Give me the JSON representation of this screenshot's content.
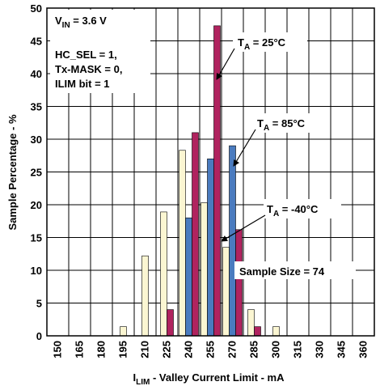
{
  "chart_data": {
    "type": "bar",
    "xlabel": {
      "main": "I",
      "sub": "LIM",
      "rest": " - Valley Current Limit - mA"
    },
    "ylabel": "Sample Percentage - %",
    "ylim": [
      0,
      50
    ],
    "yticks": [
      "0",
      "5",
      "10",
      "15",
      "20",
      "25",
      "30",
      "35",
      "40",
      "45",
      "50"
    ],
    "categories": [
      "150",
      "165",
      "180",
      "195",
      "210",
      "225",
      "240",
      "255",
      "270",
      "285",
      "300",
      "315",
      "330",
      "345",
      "360"
    ],
    "grid": true,
    "series": [
      {
        "name": "T_A = 25°C",
        "color": "#b0235f",
        "bars": [
          {
            "x": 225,
            "value": 4.0
          },
          {
            "x": 240,
            "value": 31.0
          },
          {
            "x": 255,
            "value": 47.3
          },
          {
            "x": 270,
            "value": 16.2
          },
          {
            "x": 285,
            "value": 1.4
          }
        ]
      },
      {
        "name": "T_A = 85°C",
        "color": "#4a7bbf",
        "bars": [
          {
            "x": 240,
            "value": 18.0
          },
          {
            "x": 255,
            "value": 27.0
          },
          {
            "x": 270,
            "value": 29.0
          }
        ]
      },
      {
        "name": "T_A = -40°C",
        "color": "#fbf6d2",
        "bars": [
          {
            "x": 195,
            "value": 1.4
          },
          {
            "x": 210,
            "value": 12.2
          },
          {
            "x": 225,
            "value": 18.9
          },
          {
            "x": 240,
            "value": 28.3
          },
          {
            "x": 255,
            "value": 20.3
          },
          {
            "x": 270,
            "value": 13.5
          },
          {
            "x": 285,
            "value": 4.0
          },
          {
            "x": 300,
            "value": 1.4
          }
        ]
      }
    ],
    "annotations": {
      "vin": {
        "main": "V",
        "sub": "IN",
        "rest": " = 3.6 V"
      },
      "conditions": [
        "HC_SEL = 1,",
        "Tx-MASK = 0,",
        "ILIM bit = 1"
      ],
      "ta25": {
        "main": "T",
        "sub": "A",
        "rest": " = 25°C"
      },
      "ta85": {
        "main": "T",
        "sub": "A",
        "rest": " = 85°C"
      },
      "tam40": {
        "main": "T",
        "sub": "A",
        "rest": " = -40°C"
      },
      "sample_size": "Sample Size = 74"
    }
  }
}
